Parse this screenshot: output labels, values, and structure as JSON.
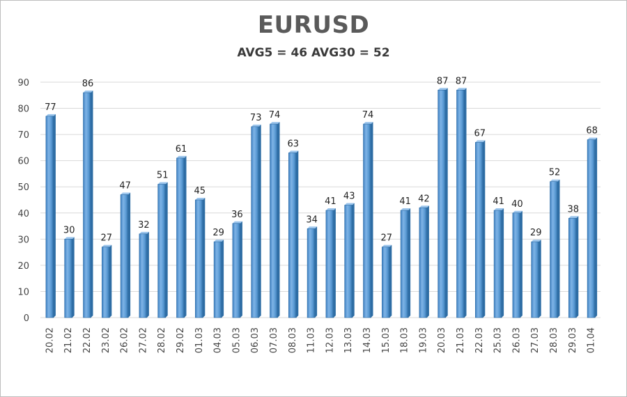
{
  "chart_data": {
    "type": "bar",
    "title": "EURUSD",
    "subtitle": "AVG5 = 46 AVG30 = 52",
    "categories": [
      "20.02",
      "21.02",
      "22.02",
      "23.02",
      "26.02",
      "27.02",
      "28.02",
      "29.02",
      "01.03",
      "04.03",
      "05.03",
      "06.03",
      "07.03",
      "08.03",
      "11.03",
      "12.03",
      "13.03",
      "14.03",
      "15.03",
      "18.03",
      "19.03",
      "20.03",
      "21.03",
      "22.03",
      "25.03",
      "26.03",
      "27.03",
      "28.03",
      "29.03",
      "01.04"
    ],
    "values": [
      77,
      30,
      86,
      27,
      47,
      32,
      51,
      61,
      45,
      29,
      36,
      73,
      74,
      63,
      34,
      41,
      43,
      74,
      27,
      41,
      42,
      87,
      87,
      67,
      41,
      40,
      29,
      52,
      38,
      68
    ],
    "ylim": [
      0,
      90
    ],
    "yticks": [
      0,
      10,
      20,
      30,
      40,
      50,
      60,
      70,
      80,
      90
    ],
    "grid": true,
    "legend": "none",
    "bar_color": "#5b9bd5",
    "bar_dark_color": "#2e6da4"
  }
}
